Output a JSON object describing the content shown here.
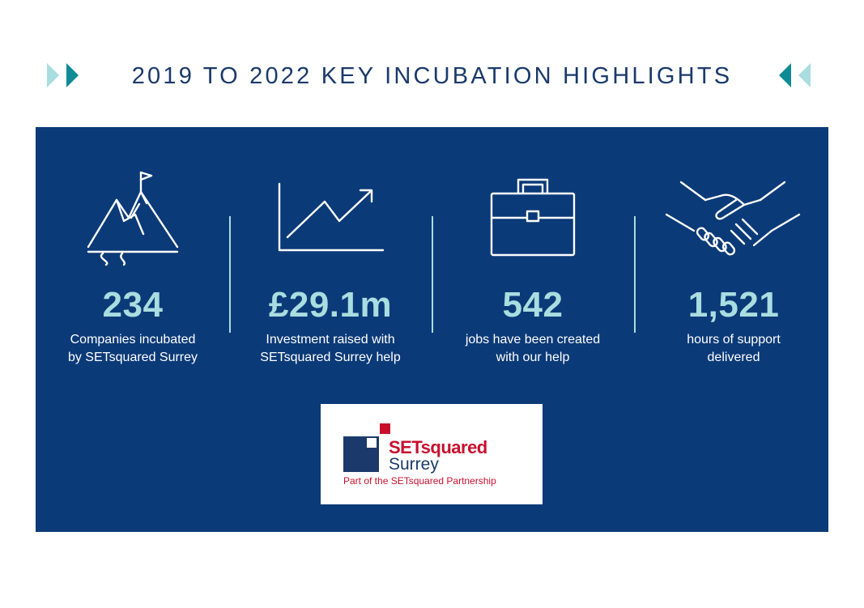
{
  "header": {
    "title": "2019 TO 2022 KEY INCUBATION HIGHLIGHTS"
  },
  "colors": {
    "background": "#ffffff",
    "panel": "#0b3a78",
    "title": "#1b3a6b",
    "value": "#a9dde0",
    "arrow_dark": "#0e8b95",
    "arrow_light": "#a9dde0",
    "brand_red": "#c8102e",
    "brand_navy": "#1b3a6b"
  },
  "stats": [
    {
      "icon": "mountain-flag-icon",
      "value": "234",
      "line1": "Companies incubated",
      "line2": "by SETsquared Surrey"
    },
    {
      "icon": "growth-chart-icon",
      "value": "£29.1m",
      "line1": "Investment raised with",
      "line2": "SETsquared Surrey help"
    },
    {
      "icon": "briefcase-icon",
      "value": "542",
      "line1": "jobs have been created",
      "line2": "with our help"
    },
    {
      "icon": "handshake-icon",
      "value": "1,521",
      "line1": "hours of support",
      "line2": "delivered"
    }
  ],
  "logo": {
    "brand": "SETsquared",
    "sub": "Surrey",
    "tagline": "Part of the SETsquared Partnership"
  }
}
